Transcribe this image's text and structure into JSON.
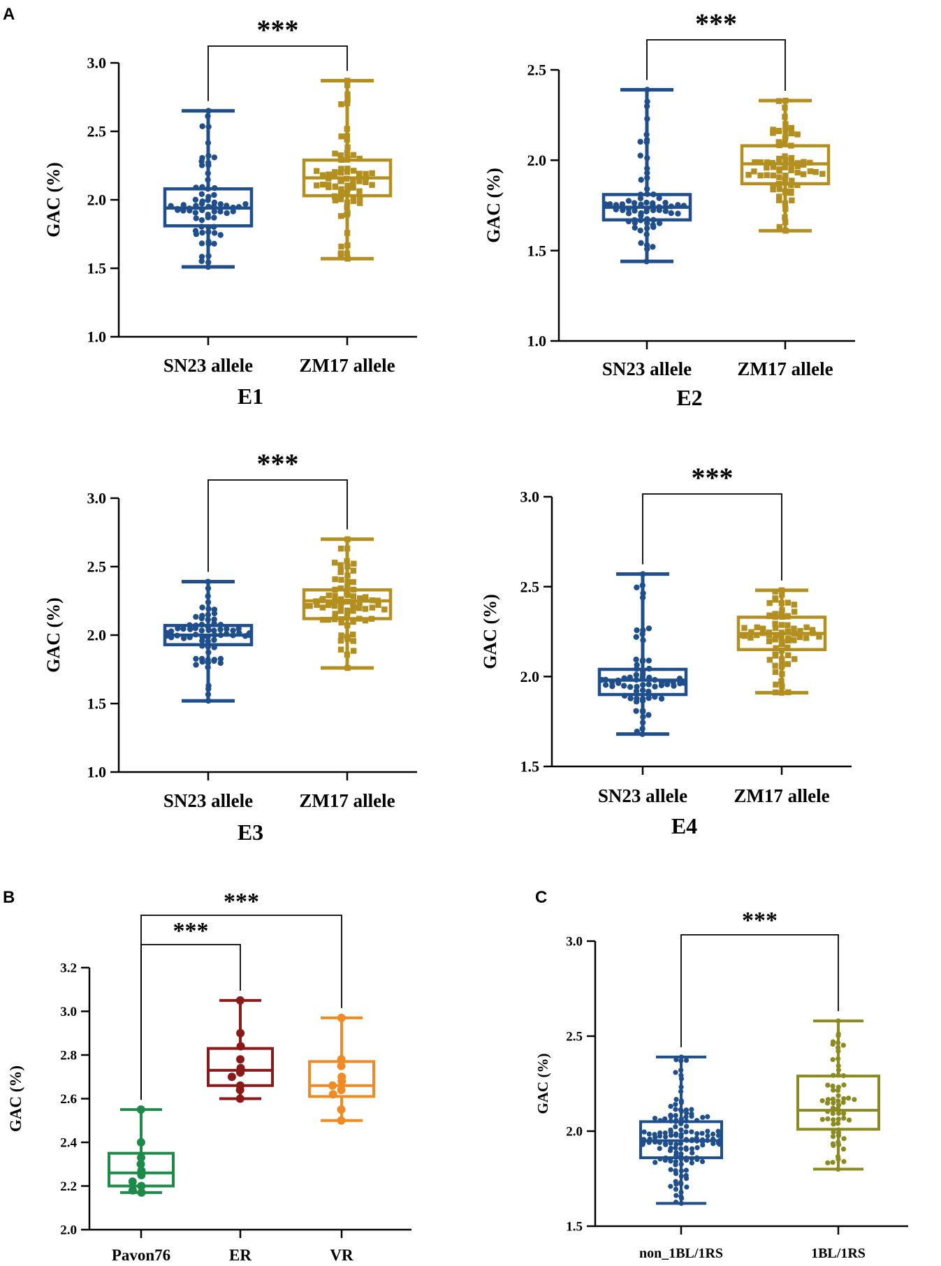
{
  "panel_labels": [
    "A",
    "B",
    "C"
  ],
  "colors": {
    "sn23": "#1f4e8c",
    "zm17": "#b38f1f",
    "pavon76": "#1e8a4a",
    "er": "#8a1a1a",
    "vr": "#f08a24",
    "non_1bl1rs": "#1f4e8c",
    "bl1rs": "#8a8a20"
  },
  "chart_data": [
    {
      "id": "E1",
      "panel": "A",
      "type": "box",
      "title": "E1",
      "ylabel": "GAC (%)",
      "ylim": [
        1.0,
        3.0
      ],
      "yticks": [
        1.0,
        1.5,
        2.0,
        2.5,
        3.0
      ],
      "tick_decimals": 1,
      "significance": [
        {
          "from": 0,
          "to": 1,
          "label": "***"
        }
      ],
      "groups": [
        {
          "name": "SN23 allele",
          "color_key": "sn23",
          "marker": "circle",
          "n": 70,
          "seed": 11,
          "min": 1.51,
          "q1": 1.81,
          "median": 1.94,
          "q3": 2.08,
          "max": 2.65
        },
        {
          "name": "ZM17 allele",
          "color_key": "zm17",
          "marker": "square",
          "n": 75,
          "seed": 12,
          "min": 1.57,
          "q1": 2.03,
          "median": 2.16,
          "q3": 2.29,
          "max": 2.87
        }
      ]
    },
    {
      "id": "E2",
      "panel": "A",
      "type": "box",
      "title": "E2",
      "ylabel": "GAC (%)",
      "ylim": [
        1.0,
        2.5
      ],
      "yticks": [
        1.0,
        1.5,
        2.0,
        2.5
      ],
      "tick_decimals": 1,
      "significance": [
        {
          "from": 0,
          "to": 1,
          "label": "***"
        }
      ],
      "groups": [
        {
          "name": "SN23 allele",
          "color_key": "sn23",
          "marker": "circle",
          "n": 70,
          "seed": 21,
          "min": 1.44,
          "q1": 1.67,
          "median": 1.74,
          "q3": 1.81,
          "max": 2.39
        },
        {
          "name": "ZM17 allele",
          "color_key": "zm17",
          "marker": "square",
          "n": 75,
          "seed": 22,
          "min": 1.61,
          "q1": 1.87,
          "median": 1.98,
          "q3": 2.08,
          "max": 2.33
        }
      ]
    },
    {
      "id": "E3",
      "panel": "A",
      "type": "box",
      "title": "E3",
      "ylabel": "GAC (%)",
      "ylim": [
        1.0,
        3.0
      ],
      "yticks": [
        1.0,
        1.5,
        2.0,
        2.5,
        3.0
      ],
      "tick_decimals": 1,
      "significance": [
        {
          "from": 0,
          "to": 1,
          "label": "***"
        }
      ],
      "groups": [
        {
          "name": "SN23 allele",
          "color_key": "sn23",
          "marker": "circle",
          "n": 75,
          "seed": 31,
          "min": 1.52,
          "q1": 1.93,
          "median": 2.0,
          "q3": 2.07,
          "max": 2.39
        },
        {
          "name": "ZM17 allele",
          "color_key": "zm17",
          "marker": "square",
          "n": 80,
          "seed": 32,
          "min": 1.76,
          "q1": 2.12,
          "median": 2.25,
          "q3": 2.33,
          "max": 2.7
        }
      ]
    },
    {
      "id": "E4",
      "panel": "A",
      "type": "box",
      "title": "E4",
      "ylabel": "GAC (%)",
      "ylim": [
        1.5,
        3.0
      ],
      "yticks": [
        1.5,
        2.0,
        2.5,
        3.0
      ],
      "tick_decimals": 1,
      "significance": [
        {
          "from": 0,
          "to": 1,
          "label": "***"
        }
      ],
      "groups": [
        {
          "name": "SN23 allele",
          "color_key": "sn23",
          "marker": "circle",
          "n": 70,
          "seed": 41,
          "min": 1.68,
          "q1": 1.9,
          "median": 1.98,
          "q3": 2.04,
          "max": 2.57
        },
        {
          "name": "ZM17 allele",
          "color_key": "zm17",
          "marker": "square",
          "n": 75,
          "seed": 42,
          "min": 1.91,
          "q1": 2.15,
          "median": 2.24,
          "q3": 2.33,
          "max": 2.48
        }
      ]
    },
    {
      "id": "B",
      "panel": "B",
      "type": "box",
      "title": "",
      "ylabel": "GAC (%)",
      "ylim": [
        2.0,
        3.2
      ],
      "yticks": [
        2.0,
        2.2,
        2.4,
        2.6,
        2.8,
        3.0,
        3.2
      ],
      "tick_decimals": 1,
      "significance": [
        {
          "from": 0,
          "to": 1,
          "label": "***"
        },
        {
          "from": 0,
          "to": 2,
          "label": "***"
        }
      ],
      "groups": [
        {
          "name": "Pavon76",
          "color_key": "pavon76",
          "marker": "circle",
          "points": [
            2.55,
            2.4,
            2.33,
            2.3,
            2.27,
            2.25,
            2.22,
            2.2,
            2.18,
            2.17
          ],
          "min": 2.17,
          "q1": 2.2,
          "median": 2.26,
          "q3": 2.35,
          "max": 2.55
        },
        {
          "name": "ER",
          "color_key": "er",
          "marker": "circle",
          "points": [
            3.05,
            2.9,
            2.84,
            2.78,
            2.74,
            2.72,
            2.7,
            2.66,
            2.64,
            2.6
          ],
          "min": 2.6,
          "q1": 2.66,
          "median": 2.73,
          "q3": 2.83,
          "max": 3.05
        },
        {
          "name": "VR",
          "color_key": "vr",
          "marker": "circle",
          "points": [
            2.97,
            2.78,
            2.75,
            2.7,
            2.68,
            2.66,
            2.64,
            2.62,
            2.55,
            2.5
          ],
          "min": 2.5,
          "q1": 2.61,
          "median": 2.66,
          "q3": 2.77,
          "max": 2.97
        }
      ]
    },
    {
      "id": "C",
      "panel": "C",
      "type": "box",
      "title": "",
      "ylabel": "GAC (%)",
      "ylim": [
        1.5,
        3.0
      ],
      "yticks": [
        1.5,
        2.0,
        2.5,
        3.0
      ],
      "tick_decimals": 1,
      "significance": [
        {
          "from": 0,
          "to": 1,
          "label": "***"
        }
      ],
      "groups": [
        {
          "name": "non_1BL/1RS",
          "color_key": "non_1bl1rs",
          "marker": "circle",
          "n": 150,
          "seed": 51,
          "min": 1.62,
          "q1": 1.86,
          "median": 1.95,
          "q3": 2.05,
          "max": 2.39
        },
        {
          "name": "1BL/1RS",
          "color_key": "bl1rs",
          "marker": "circle",
          "n": 65,
          "seed": 52,
          "min": 1.8,
          "q1": 2.01,
          "median": 2.11,
          "q3": 2.29,
          "max": 2.58
        }
      ]
    }
  ]
}
